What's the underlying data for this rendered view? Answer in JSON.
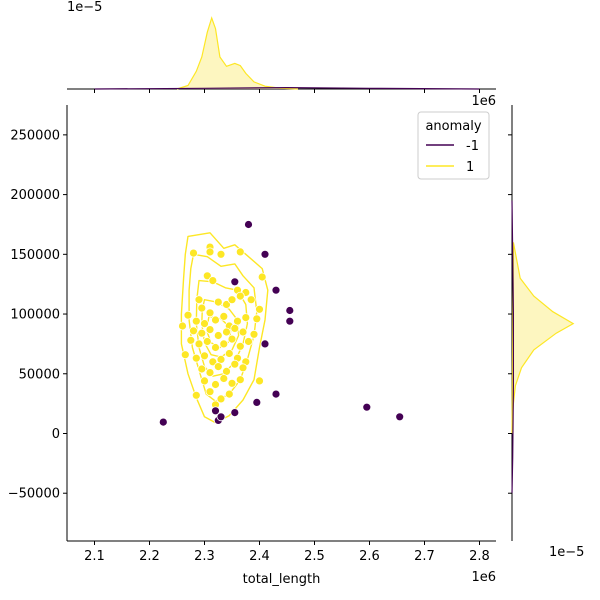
{
  "chart_data": {
    "type": "scatter",
    "subtype": "joint-plot-with-kde",
    "xlabel": "total_length",
    "ylabel": "",
    "x_offset_label": "1e6",
    "top_marginal_scale_label": "1e−5",
    "right_marginal_scale_label": "1e−5",
    "xlim": [
      2.05,
      2.83
    ],
    "ylim": [
      -90000,
      275000
    ],
    "x_ticks": [
      "2.1",
      "2.2",
      "2.3",
      "2.4",
      "2.5",
      "2.6",
      "2.7",
      "2.8"
    ],
    "y_ticks": [
      "−50000",
      "0",
      "50000",
      "100000",
      "150000",
      "200000",
      "250000"
    ],
    "legend": {
      "title": "anomaly",
      "position": "top-right",
      "entries": [
        {
          "label": "-1",
          "color": "#440154"
        },
        {
          "label": "1",
          "color": "#fde725"
        }
      ]
    },
    "colors": {
      "normal": "#fde725",
      "anomaly": "#440154",
      "normal_fill": "#fdf4b0"
    },
    "series": [
      {
        "name": "-1",
        "color": "#440154",
        "points": [
          [
            2.225,
            9500
          ],
          [
            2.32,
            19000
          ],
          [
            2.325,
            11000
          ],
          [
            2.33,
            14000
          ],
          [
            2.355,
            17500
          ],
          [
            2.38,
            175000
          ],
          [
            2.41,
            150000
          ],
          [
            2.355,
            127000
          ],
          [
            2.43,
            120000
          ],
          [
            2.455,
            103000
          ],
          [
            2.455,
            94000
          ],
          [
            2.41,
            75000
          ],
          [
            2.395,
            26000
          ],
          [
            2.43,
            33000
          ],
          [
            2.595,
            22000
          ],
          [
            2.655,
            14000
          ]
        ]
      },
      {
        "name": "1",
        "color": "#fde725",
        "points": [
          [
            2.31,
            156000
          ],
          [
            2.31,
            152000
          ],
          [
            2.28,
            151000
          ],
          [
            2.33,
            150000
          ],
          [
            2.365,
            152000
          ],
          [
            2.305,
            132000
          ],
          [
            2.315,
            128000
          ],
          [
            2.36,
            120000
          ],
          [
            2.375,
            118000
          ],
          [
            2.405,
            131000
          ],
          [
            2.29,
            112000
          ],
          [
            2.295,
            105000
          ],
          [
            2.31,
            101000
          ],
          [
            2.325,
            110000
          ],
          [
            2.34,
            108000
          ],
          [
            2.35,
            112000
          ],
          [
            2.365,
            115000
          ],
          [
            2.385,
            112000
          ],
          [
            2.4,
            104000
          ],
          [
            2.27,
            99000
          ],
          [
            2.285,
            94000
          ],
          [
            2.3,
            92000
          ],
          [
            2.32,
            95000
          ],
          [
            2.335,
            98000
          ],
          [
            2.345,
            90000
          ],
          [
            2.36,
            94000
          ],
          [
            2.375,
            97000
          ],
          [
            2.395,
            96000
          ],
          [
            2.26,
            90000
          ],
          [
            2.28,
            86000
          ],
          [
            2.295,
            84000
          ],
          [
            2.31,
            87000
          ],
          [
            2.325,
            82000
          ],
          [
            2.34,
            85000
          ],
          [
            2.355,
            88000
          ],
          [
            2.37,
            85000
          ],
          [
            2.39,
            83000
          ],
          [
            2.275,
            78000
          ],
          [
            2.29,
            75000
          ],
          [
            2.305,
            77000
          ],
          [
            2.32,
            72000
          ],
          [
            2.335,
            75000
          ],
          [
            2.35,
            79000
          ],
          [
            2.365,
            73000
          ],
          [
            2.38,
            77000
          ],
          [
            2.265,
            66000
          ],
          [
            2.285,
            63000
          ],
          [
            2.3,
            65000
          ],
          [
            2.315,
            60000
          ],
          [
            2.33,
            62000
          ],
          [
            2.345,
            67000
          ],
          [
            2.36,
            63000
          ],
          [
            2.375,
            60000
          ],
          [
            2.295,
            54000
          ],
          [
            2.31,
            51000
          ],
          [
            2.325,
            56000
          ],
          [
            2.34,
            52000
          ],
          [
            2.355,
            58000
          ],
          [
            2.37,
            55000
          ],
          [
            2.3,
            44000
          ],
          [
            2.32,
            41000
          ],
          [
            2.335,
            46000
          ],
          [
            2.35,
            42000
          ],
          [
            2.365,
            45000
          ],
          [
            2.4,
            44000
          ],
          [
            2.285,
            32000
          ],
          [
            2.31,
            35000
          ],
          [
            2.33,
            29000
          ],
          [
            2.345,
            33000
          ],
          [
            2.32,
            24000
          ]
        ]
      }
    ],
    "kde_contour": {
      "color": "#fde725",
      "levels": [
        [
          [
            2.27,
            165000
          ],
          [
            2.31,
            168000
          ],
          [
            2.335,
            155000
          ],
          [
            2.355,
            158000
          ],
          [
            2.375,
            150000
          ],
          [
            2.405,
            138000
          ],
          [
            2.415,
            120000
          ],
          [
            2.41,
            95000
          ],
          [
            2.4,
            72000
          ],
          [
            2.39,
            45000
          ],
          [
            2.37,
            28000
          ],
          [
            2.345,
            15000
          ],
          [
            2.32,
            9000
          ],
          [
            2.3,
            14000
          ],
          [
            2.285,
            30000
          ],
          [
            2.27,
            50000
          ],
          [
            2.258,
            75000
          ],
          [
            2.258,
            100000
          ],
          [
            2.262,
            130000
          ],
          [
            2.265,
            150000
          ]
        ],
        [
          [
            2.28,
            150000
          ],
          [
            2.305,
            148000
          ],
          [
            2.33,
            140000
          ],
          [
            2.355,
            142000
          ],
          [
            2.37,
            132000
          ],
          [
            2.39,
            122000
          ],
          [
            2.395,
            102000
          ],
          [
            2.39,
            82000
          ],
          [
            2.378,
            62000
          ],
          [
            2.365,
            45000
          ],
          [
            2.345,
            33000
          ],
          [
            2.32,
            27000
          ],
          [
            2.303,
            33000
          ],
          [
            2.292,
            50000
          ],
          [
            2.278,
            72000
          ],
          [
            2.272,
            95000
          ],
          [
            2.272,
            120000
          ],
          [
            2.275,
            138000
          ]
        ],
        [
          [
            2.29,
            128000
          ],
          [
            2.315,
            127000
          ],
          [
            2.338,
            122000
          ],
          [
            2.36,
            120000
          ],
          [
            2.375,
            108000
          ],
          [
            2.378,
            92000
          ],
          [
            2.37,
            75000
          ],
          [
            2.355,
            60000
          ],
          [
            2.335,
            50000
          ],
          [
            2.315,
            48000
          ],
          [
            2.3,
            56000
          ],
          [
            2.29,
            72000
          ],
          [
            2.285,
            92000
          ],
          [
            2.286,
            112000
          ]
        ],
        [
          [
            2.3,
            112000
          ],
          [
            2.322,
            110000
          ],
          [
            2.345,
            104000
          ],
          [
            2.36,
            95000
          ],
          [
            2.362,
            82000
          ],
          [
            2.35,
            70000
          ],
          [
            2.33,
            64000
          ],
          [
            2.312,
            66000
          ],
          [
            2.3,
            76000
          ],
          [
            2.295,
            92000
          ],
          [
            2.296,
            104000
          ]
        ],
        [
          [
            2.308,
            98000
          ],
          [
            2.33,
            96000
          ],
          [
            2.348,
            88000
          ],
          [
            2.345,
            77000
          ],
          [
            2.328,
            72000
          ],
          [
            2.312,
            76000
          ],
          [
            2.304,
            86000
          ]
        ]
      ]
    },
    "top_marginal": {
      "curves": [
        {
          "name": "1",
          "color": "#fde725",
          "fill": "#fdf4b0",
          "points": [
            [
              2.25,
              0
            ],
            [
              2.27,
              0.05
            ],
            [
              2.285,
              0.25
            ],
            [
              2.295,
              0.45
            ],
            [
              2.305,
              0.8
            ],
            [
              2.313,
              1.0
            ],
            [
              2.32,
              0.85
            ],
            [
              2.328,
              0.45
            ],
            [
              2.34,
              0.32
            ],
            [
              2.355,
              0.36
            ],
            [
              2.365,
              0.33
            ],
            [
              2.375,
              0.22
            ],
            [
              2.39,
              0.1
            ],
            [
              2.41,
              0.04
            ],
            [
              2.44,
              0.01
            ],
            [
              2.47,
              0
            ]
          ]
        },
        {
          "name": "-1",
          "color": "#440154",
          "fill": "none",
          "points": [
            [
              2.1,
              0
            ],
            [
              2.3,
              0.01
            ],
            [
              2.45,
              0.02
            ],
            [
              2.6,
              0.01
            ],
            [
              2.8,
              0
            ]
          ]
        }
      ]
    },
    "right_marginal": {
      "curves": [
        {
          "name": "1",
          "color": "#fde725",
          "fill": "#fdf4b0",
          "points": [
            [
              0,
              0
            ],
            [
              160000,
              0.02
            ],
            [
              130000,
              0.12
            ],
            [
              115000,
              0.32
            ],
            [
              102000,
              0.6
            ],
            [
              92000,
              0.9
            ],
            [
              84000,
              0.65
            ],
            [
              70000,
              0.32
            ],
            [
              55000,
              0.14
            ],
            [
              40000,
              0.05
            ],
            [
              25000,
              0.02
            ],
            [
              10000,
              0
            ]
          ]
        },
        {
          "name": "-1",
          "color": "#440154",
          "fill": "none",
          "points": [
            [
              195000,
              0
            ],
            [
              150000,
              0.01
            ],
            [
              100000,
              0.02
            ],
            [
              40000,
              0.02
            ],
            [
              -20000,
              0.01
            ],
            [
              -50000,
              0
            ]
          ]
        }
      ]
    }
  }
}
